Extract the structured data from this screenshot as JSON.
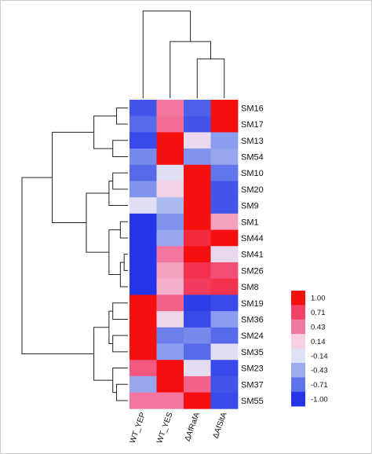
{
  "chart_data": {
    "type": "heatmap",
    "columns": [
      "WT_YEP",
      "WT_YES",
      "ΔAfRafA",
      "ΔAfSltA"
    ],
    "rows": [
      "SM16",
      "SM17",
      "SM13",
      "SM54",
      "SM10",
      "SM20",
      "SM9",
      "SM1",
      "SM44",
      "SM41",
      "SM26",
      "SM8",
      "SM19",
      "SM36",
      "SM24",
      "SM35",
      "SM23",
      "SM37",
      "SM55"
    ],
    "values": [
      [
        -0.85,
        0.45,
        -0.8,
        1.0
      ],
      [
        -0.75,
        0.5,
        -0.85,
        1.0
      ],
      [
        -0.9,
        1.0,
        0.0,
        -0.5
      ],
      [
        -0.6,
        1.0,
        -0.55,
        -0.45
      ],
      [
        -0.75,
        -0.1,
        1.0,
        -0.7
      ],
      [
        -0.55,
        0.1,
        1.0,
        -0.85
      ],
      [
        -0.1,
        -0.35,
        1.0,
        -0.85
      ],
      [
        -1.0,
        -0.55,
        1.0,
        0.3
      ],
      [
        -1.0,
        -0.45,
        0.85,
        1.0
      ],
      [
        -1.0,
        0.45,
        1.0,
        0.0
      ],
      [
        -1.0,
        0.3,
        0.8,
        0.65
      ],
      [
        -1.0,
        0.25,
        0.75,
        0.8
      ],
      [
        1.0,
        0.55,
        -0.95,
        -0.9
      ],
      [
        1.0,
        0.05,
        -0.9,
        -0.5
      ],
      [
        1.0,
        -0.65,
        -0.6,
        -0.75
      ],
      [
        1.0,
        -0.5,
        -0.75,
        -0.1
      ],
      [
        0.6,
        1.0,
        -0.05,
        -0.9
      ],
      [
        -0.45,
        1.0,
        0.55,
        -0.85
      ],
      [
        0.45,
        0.45,
        1.0,
        -0.9
      ]
    ],
    "color_scale": {
      "ticks": [
        1.0,
        0.71,
        0.43,
        0.14,
        -0.14,
        -0.43,
        -0.71,
        -1.0
      ],
      "tick_labels": [
        "1.00",
        "0.71",
        "0.43",
        "0.14",
        "-0.14",
        "-0.43",
        "-0.71",
        "-1.00"
      ],
      "colors": [
        "#f50f0f",
        "#f2426a",
        "#f27aa2",
        "#f6cfe2",
        "#dde2f6",
        "#9aabf0",
        "#5f74ea",
        "#2434e8"
      ]
    },
    "row_dendrogram": {
      "leaf_order": [
        "SM16",
        "SM17",
        "SM13",
        "SM54",
        "SM10",
        "SM20",
        "SM9",
        "SM1",
        "SM44",
        "SM41",
        "SM26",
        "SM8",
        "SM19",
        "SM36",
        "SM24",
        "SM35",
        "SM23",
        "SM37",
        "SM55"
      ],
      "merges": [
        [
          -1,
          -2,
          0.15
        ],
        [
          -3,
          -4,
          0.2
        ],
        [
          1,
          2,
          0.45
        ],
        [
          -5,
          -6,
          0.2
        ],
        [
          4,
          -7,
          0.25
        ],
        [
          -8,
          -9,
          0.1
        ],
        [
          -10,
          -11,
          0.05
        ],
        [
          7,
          -12,
          0.1
        ],
        [
          6,
          8,
          0.25
        ],
        [
          5,
          9,
          0.55
        ],
        [
          3,
          10,
          1.0
        ],
        [
          -13,
          -14,
          0.2
        ],
        [
          -15,
          -16,
          0.2
        ],
        [
          12,
          13,
          0.25
        ],
        [
          -18,
          -19,
          0.15
        ],
        [
          -17,
          15,
          0.2
        ],
        [
          14,
          16,
          0.45
        ],
        [
          11,
          17,
          1.4
        ]
      ]
    },
    "col_dendrogram": {
      "leaf_order": [
        "WT_YEP",
        "WT_YES",
        "ΔAfRafA",
        "ΔAfSltA"
      ],
      "merges": [
        [
          -3,
          -4,
          0.45
        ],
        [
          -2,
          1,
          0.65
        ],
        [
          -1,
          2,
          1.0
        ]
      ]
    }
  }
}
